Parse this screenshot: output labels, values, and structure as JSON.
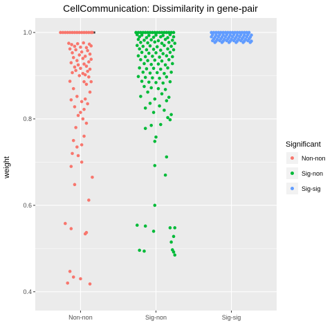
{
  "chart_data": {
    "type": "scatter",
    "subtype": "jitter-with-boxplot",
    "title": "CellCommunication: Dissimilarity in gene-pair",
    "xlabel": "",
    "ylabel": "weight",
    "categories": [
      "Non-non",
      "Sig-non",
      "Sig-sig"
    ],
    "ylim": [
      0.39,
      1.0
    ],
    "yticks": [
      0.4,
      0.6,
      0.8,
      1.0
    ],
    "ytick_labels": [
      "0.4",
      "0.6",
      "0.8",
      "1.0"
    ],
    "grid": true,
    "legend": {
      "title": "Significant",
      "position": "right",
      "entries": [
        "Non-non",
        "Sig-non",
        "Sig-sig"
      ]
    },
    "colors": {
      "Non-non": "#F8766D",
      "Sig-non": "#00BA38",
      "Sig-sig": "#619CFF",
      "panel_bg": "#EBEBEB",
      "grid": "#FFFFFF"
    },
    "series": [
      {
        "name": "Non-non",
        "points": [
          [
            -0.34,
            1.0
          ],
          [
            -0.3,
            1.0
          ],
          [
            -0.26,
            1.0
          ],
          [
            -0.22,
            1.0
          ],
          [
            -0.18,
            1.0
          ],
          [
            -0.14,
            1.0
          ],
          [
            -0.1,
            1.0
          ],
          [
            -0.06,
            1.0
          ],
          [
            -0.02,
            1.0
          ],
          [
            0.02,
            1.0
          ],
          [
            0.06,
            1.0
          ],
          [
            0.1,
            1.0
          ],
          [
            0.14,
            1.0
          ],
          [
            0.18,
            1.0
          ],
          [
            0.2,
            1.0
          ],
          [
            -0.2,
            0.975
          ],
          [
            -0.15,
            0.972
          ],
          [
            -0.05,
            0.974
          ],
          [
            0.05,
            0.976
          ],
          [
            0.15,
            0.973
          ],
          [
            0.18,
            0.969
          ],
          [
            -0.1,
            0.968
          ],
          [
            0.0,
            0.966
          ],
          [
            0.1,
            0.965
          ],
          [
            -0.18,
            0.962
          ],
          [
            -0.08,
            0.96
          ],
          [
            0.12,
            0.958
          ],
          [
            0.02,
            0.955
          ],
          [
            -0.14,
            0.953
          ],
          [
            0.16,
            0.95
          ],
          [
            -0.02,
            0.948
          ],
          [
            0.08,
            0.945
          ],
          [
            -0.12,
            0.942
          ],
          [
            0.04,
            0.94
          ],
          [
            0.18,
            0.938
          ],
          [
            -0.06,
            0.935
          ],
          [
            0.14,
            0.932
          ],
          [
            -0.16,
            0.93
          ],
          [
            0.06,
            0.927
          ],
          [
            -0.04,
            0.925
          ],
          [
            0.1,
            0.922
          ],
          [
            -0.1,
            0.92
          ],
          [
            0.0,
            0.917
          ],
          [
            0.16,
            0.915
          ],
          [
            -0.08,
            0.912
          ],
          [
            0.12,
            0.91
          ],
          [
            -0.14,
            0.907
          ],
          [
            0.04,
            0.905
          ],
          [
            0.08,
            0.902
          ],
          [
            -0.02,
            0.9
          ],
          [
            0.14,
            0.897
          ],
          [
            -0.18,
            0.887
          ],
          [
            0.06,
            0.886
          ],
          [
            0.18,
            0.886
          ],
          [
            0.1,
            0.88
          ],
          [
            -0.12,
            0.87
          ],
          [
            0.16,
            0.862
          ],
          [
            -0.06,
            0.852
          ],
          [
            0.08,
            0.846
          ],
          [
            -0.16,
            0.844
          ],
          [
            0.02,
            0.84
          ],
          [
            0.12,
            0.835
          ],
          [
            -0.1,
            0.828
          ],
          [
            0.06,
            0.822
          ],
          [
            0.0,
            0.815
          ],
          [
            -0.04,
            0.808
          ],
          [
            0.04,
            0.8
          ],
          [
            0.1,
            0.79
          ],
          [
            -0.08,
            0.78
          ],
          [
            0.06,
            0.76
          ],
          [
            -0.12,
            0.75
          ],
          [
            0.02,
            0.74
          ],
          [
            -0.06,
            0.735
          ],
          [
            -0.14,
            0.72
          ],
          [
            -0.04,
            0.715
          ],
          [
            0.02,
            0.7
          ],
          [
            -0.16,
            0.69
          ],
          [
            0.2,
            0.665
          ],
          [
            -0.1,
            0.648
          ],
          [
            0.14,
            0.612
          ],
          [
            -0.26,
            0.558
          ],
          [
            -0.16,
            0.546
          ],
          [
            0.1,
            0.537
          ],
          [
            0.08,
            0.534
          ],
          [
            -0.18,
            0.447
          ],
          [
            -0.12,
            0.434
          ],
          [
            0.0,
            0.43
          ],
          [
            -0.22,
            0.42
          ],
          [
            0.16,
            0.418
          ]
        ]
      },
      {
        "name": "Sig-non",
        "points": [
          [
            -0.34,
            1.0
          ],
          [
            -0.3,
            1.0
          ],
          [
            -0.26,
            1.0
          ],
          [
            -0.22,
            1.0
          ],
          [
            -0.18,
            1.0
          ],
          [
            -0.14,
            1.0
          ],
          [
            -0.1,
            1.0
          ],
          [
            -0.06,
            1.0
          ],
          [
            -0.02,
            1.0
          ],
          [
            0.02,
            1.0
          ],
          [
            0.06,
            1.0
          ],
          [
            0.1,
            1.0
          ],
          [
            0.14,
            1.0
          ],
          [
            0.18,
            1.0
          ],
          [
            0.22,
            1.0
          ],
          [
            0.26,
            1.0
          ],
          [
            0.3,
            1.0
          ],
          [
            -0.32,
            0.995
          ],
          [
            -0.24,
            0.994
          ],
          [
            -0.12,
            0.993
          ],
          [
            0.0,
            0.994
          ],
          [
            0.12,
            0.993
          ],
          [
            0.24,
            0.995
          ],
          [
            -0.28,
            0.99
          ],
          [
            -0.16,
            0.988
          ],
          [
            -0.04,
            0.989
          ],
          [
            0.08,
            0.99
          ],
          [
            0.2,
            0.988
          ],
          [
            0.3,
            0.99
          ],
          [
            -0.3,
            0.984
          ],
          [
            -0.2,
            0.982
          ],
          [
            -0.08,
            0.983
          ],
          [
            0.04,
            0.981
          ],
          [
            0.16,
            0.984
          ],
          [
            0.28,
            0.982
          ],
          [
            -0.26,
            0.977
          ],
          [
            -0.14,
            0.976
          ],
          [
            -0.02,
            0.978
          ],
          [
            0.1,
            0.975
          ],
          [
            0.22,
            0.977
          ],
          [
            0.32,
            0.975
          ],
          [
            -0.32,
            0.97
          ],
          [
            -0.22,
            0.968
          ],
          [
            -0.1,
            0.969
          ],
          [
            0.02,
            0.967
          ],
          [
            0.14,
            0.97
          ],
          [
            0.26,
            0.968
          ],
          [
            -0.28,
            0.962
          ],
          [
            -0.16,
            0.96
          ],
          [
            -0.04,
            0.961
          ],
          [
            0.08,
            0.959
          ],
          [
            0.2,
            0.962
          ],
          [
            0.3,
            0.96
          ],
          [
            -0.24,
            0.954
          ],
          [
            -0.12,
            0.952
          ],
          [
            0.0,
            0.953
          ],
          [
            0.12,
            0.951
          ],
          [
            0.24,
            0.954
          ],
          [
            -0.3,
            0.946
          ],
          [
            -0.18,
            0.944
          ],
          [
            -0.06,
            0.945
          ],
          [
            0.06,
            0.943
          ],
          [
            0.18,
            0.946
          ],
          [
            0.28,
            0.944
          ],
          [
            -0.26,
            0.937
          ],
          [
            -0.14,
            0.935
          ],
          [
            -0.02,
            0.936
          ],
          [
            0.1,
            0.934
          ],
          [
            0.22,
            0.937
          ],
          [
            -0.2,
            0.928
          ],
          [
            -0.08,
            0.926
          ],
          [
            0.04,
            0.927
          ],
          [
            0.16,
            0.925
          ],
          [
            0.28,
            0.928
          ],
          [
            -0.28,
            0.918
          ],
          [
            -0.16,
            0.916
          ],
          [
            -0.04,
            0.917
          ],
          [
            0.08,
            0.915
          ],
          [
            0.2,
            0.918
          ],
          [
            -0.22,
            0.908
          ],
          [
            -0.1,
            0.906
          ],
          [
            0.02,
            0.907
          ],
          [
            0.14,
            0.905
          ],
          [
            0.26,
            0.908
          ],
          [
            -0.3,
            0.898
          ],
          [
            -0.18,
            0.896
          ],
          [
            -0.06,
            0.895
          ],
          [
            0.06,
            0.894
          ],
          [
            0.18,
            0.897
          ],
          [
            -0.24,
            0.887
          ],
          [
            -0.12,
            0.885
          ],
          [
            0.0,
            0.884
          ],
          [
            0.12,
            0.883
          ],
          [
            0.24,
            0.886
          ],
          [
            -0.2,
            0.875
          ],
          [
            -0.08,
            0.872
          ],
          [
            0.04,
            0.87
          ],
          [
            0.16,
            0.868
          ],
          [
            -0.14,
            0.862
          ],
          [
            0.1,
            0.858
          ],
          [
            -0.26,
            0.852
          ],
          [
            0.22,
            0.85
          ],
          [
            -0.02,
            0.846
          ],
          [
            0.18,
            0.842
          ],
          [
            -0.1,
            0.836
          ],
          [
            0.06,
            0.83
          ],
          [
            -0.18,
            0.825
          ],
          [
            0.14,
            0.82
          ],
          [
            -0.04,
            0.815
          ],
          [
            0.26,
            0.81
          ],
          [
            0.2,
            0.803
          ],
          [
            0.24,
            0.798
          ],
          [
            0.08,
            0.787
          ],
          [
            -0.08,
            0.785
          ],
          [
            -0.18,
            0.778
          ],
          [
            0.0,
            0.758
          ],
          [
            -0.02,
            0.748
          ],
          [
            0.18,
            0.712
          ],
          [
            -0.02,
            0.692
          ],
          [
            0.16,
            0.67
          ],
          [
            -0.02,
            0.6
          ],
          [
            -0.32,
            0.554
          ],
          [
            -0.18,
            0.552
          ],
          [
            0.24,
            0.548
          ],
          [
            0.32,
            0.548
          ],
          [
            -0.04,
            0.54
          ],
          [
            0.3,
            0.528
          ],
          [
            0.26,
            0.515
          ],
          [
            -0.28,
            0.496
          ],
          [
            -0.2,
            0.494
          ],
          [
            0.28,
            0.497
          ],
          [
            0.3,
            0.492
          ],
          [
            0.32,
            0.485
          ]
        ]
      },
      {
        "name": "Sig-sig",
        "points": [
          [
            -0.34,
            1.0
          ],
          [
            -0.3,
            1.0
          ],
          [
            -0.26,
            1.0
          ],
          [
            -0.22,
            1.0
          ],
          [
            -0.18,
            1.0
          ],
          [
            -0.14,
            1.0
          ],
          [
            -0.1,
            1.0
          ],
          [
            -0.06,
            1.0
          ],
          [
            -0.02,
            1.0
          ],
          [
            0.02,
            1.0
          ],
          [
            0.06,
            1.0
          ],
          [
            0.1,
            1.0
          ],
          [
            0.14,
            1.0
          ],
          [
            0.18,
            1.0
          ],
          [
            0.22,
            1.0
          ],
          [
            0.26,
            1.0
          ],
          [
            0.3,
            1.0
          ],
          [
            -0.32,
            0.995
          ],
          [
            -0.26,
            0.994
          ],
          [
            -0.2,
            0.995
          ],
          [
            -0.14,
            0.994
          ],
          [
            -0.08,
            0.995
          ],
          [
            -0.02,
            0.994
          ],
          [
            0.04,
            0.995
          ],
          [
            0.1,
            0.994
          ],
          [
            0.16,
            0.995
          ],
          [
            0.22,
            0.994
          ],
          [
            0.28,
            0.995
          ],
          [
            0.34,
            0.994
          ],
          [
            -0.34,
            0.99
          ],
          [
            -0.28,
            0.989
          ],
          [
            -0.22,
            0.99
          ],
          [
            -0.16,
            0.989
          ],
          [
            -0.1,
            0.99
          ],
          [
            -0.04,
            0.989
          ],
          [
            0.02,
            0.99
          ],
          [
            0.08,
            0.989
          ],
          [
            0.14,
            0.99
          ],
          [
            0.2,
            0.989
          ],
          [
            0.26,
            0.99
          ],
          [
            0.32,
            0.989
          ],
          [
            -0.3,
            0.985
          ],
          [
            -0.24,
            0.984
          ],
          [
            -0.18,
            0.985
          ],
          [
            -0.12,
            0.984
          ],
          [
            -0.06,
            0.985
          ],
          [
            0.0,
            0.984
          ],
          [
            0.06,
            0.985
          ],
          [
            0.12,
            0.984
          ],
          [
            0.18,
            0.985
          ],
          [
            0.24,
            0.984
          ],
          [
            0.3,
            0.985
          ],
          [
            -0.32,
            0.981
          ],
          [
            -0.26,
            0.98
          ],
          [
            -0.2,
            0.981
          ],
          [
            -0.14,
            0.98
          ],
          [
            -0.08,
            0.981
          ],
          [
            -0.02,
            0.98
          ],
          [
            0.04,
            0.981
          ],
          [
            0.1,
            0.98
          ],
          [
            0.16,
            0.981
          ],
          [
            0.22,
            0.98
          ],
          [
            0.28,
            0.981
          ],
          [
            0.34,
            0.98
          ],
          [
            -0.28,
            0.977
          ],
          [
            -0.16,
            0.977
          ],
          [
            -0.04,
            0.977
          ],
          [
            0.08,
            0.977
          ],
          [
            0.2,
            0.977
          ],
          [
            0.32,
            0.977
          ]
        ]
      }
    ],
    "boxes": [
      {
        "category": "Non-non",
        "median": 1.0,
        "q1": 1.0,
        "q3": 1.0
      },
      {
        "category": "Sig-non",
        "median": 1.0,
        "q1": 1.0,
        "q3": 1.0
      },
      {
        "category": "Sig-sig",
        "median": 1.0,
        "q1": 1.0,
        "q3": 1.0
      }
    ]
  }
}
